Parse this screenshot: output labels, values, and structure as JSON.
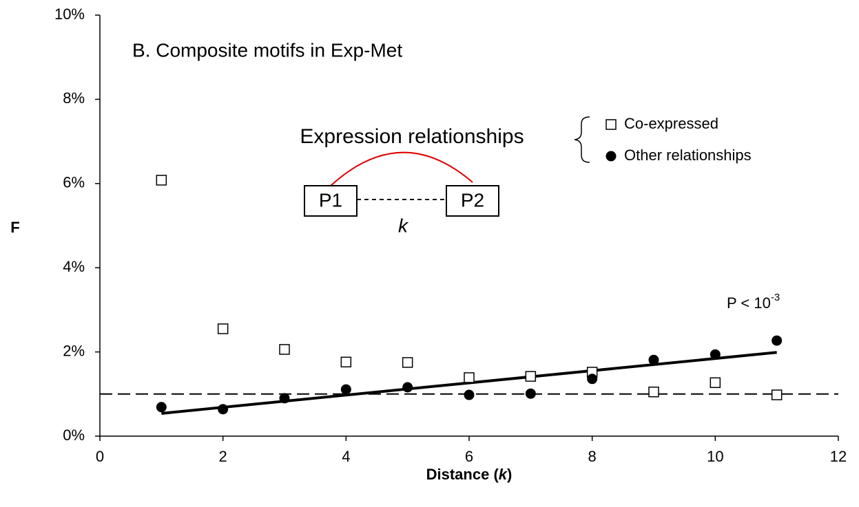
{
  "chart_data": {
    "type": "scatter",
    "title": "B. Composite motifs in Exp-Met",
    "y_label": "F",
    "x_label": {
      "text": "Distance (",
      "italic": "k",
      "end": ")"
    },
    "xlim": [
      0,
      12
    ],
    "xticks": [
      0,
      2,
      4,
      6,
      8,
      10,
      12
    ],
    "ylim": [
      0,
      10
    ],
    "yticks": [
      {
        "value": 0,
        "label": "0%"
      },
      {
        "value": 2,
        "label": "2%"
      },
      {
        "value": 4,
        "label": "4%"
      },
      {
        "value": 6,
        "label": "6%"
      },
      {
        "value": 8,
        "label": "8%"
      },
      {
        "value": 10,
        "label": "10%"
      }
    ],
    "series": [
      {
        "name": "Co-expressed",
        "marker": "square",
        "color": "#000000",
        "x": [
          1,
          2,
          3,
          4,
          5,
          6,
          7,
          8,
          9,
          10,
          11
        ],
        "values": [
          6.08,
          2.55,
          2.06,
          1.76,
          1.75,
          1.39,
          1.42,
          1.52,
          1.05,
          1.27,
          0.98
        ]
      },
      {
        "name": "Other relationships",
        "marker": "circle",
        "color": "#000000",
        "x": [
          1,
          2,
          3,
          4,
          5,
          6,
          7,
          8,
          9,
          10,
          11
        ],
        "values": [
          0.69,
          0.64,
          0.9,
          1.11,
          1.16,
          0.98,
          1.01,
          1.36,
          1.81,
          1.94,
          2.27
        ]
      }
    ],
    "trend_line": {
      "x": [
        1,
        11
      ],
      "values": [
        0.54,
        1.99
      ]
    },
    "reference_line": 1,
    "p_value": {
      "base": "P < 10",
      "exponent": "-3"
    },
    "diagram": {
      "label": "Expression relationships",
      "node1": "P1",
      "node2": "P2",
      "distance": "k"
    }
  }
}
